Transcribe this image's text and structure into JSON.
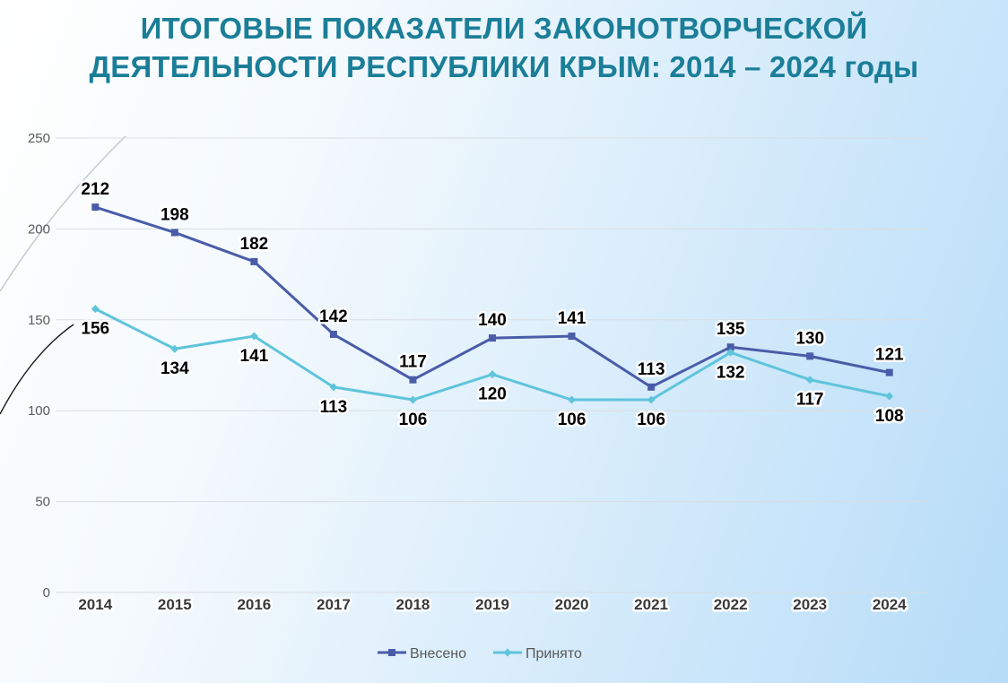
{
  "title": {
    "line1": "ИТОГОВЫЕ ПОКАЗАТЕЛИ ЗАКОНОТВОРЧЕСКОЙ",
    "line2": "ДЕЯТЕЛЬНОСТИ РЕСПУБЛИКИ КРЫМ: 2014 – 2024 годы"
  },
  "colors": {
    "title": "#1b7e98",
    "series_submitted": "#4a5ca8",
    "series_adopted": "#5fc4dc",
    "grid": "#d9dde2",
    "axis_text": "#595959"
  },
  "chart_data": {
    "type": "line",
    "title": "ИТОГОВЫЕ ПОКАЗАТЕЛИ ЗАКОНОТВОРЧЕСКОЙ ДЕЯТЕЛЬНОСТИ РЕСПУБЛИКИ КРЫМ: 2014 – 2024 годы",
    "categories": [
      "2014",
      "2015",
      "2016",
      "2017",
      "2018",
      "2019",
      "2020",
      "2021",
      "2022",
      "2023",
      "2024"
    ],
    "series": [
      {
        "name": "Внесено",
        "marker": "square",
        "values": [
          212,
          198,
          182,
          142,
          117,
          140,
          141,
          113,
          135,
          130,
          121
        ]
      },
      {
        "name": "Принято",
        "marker": "diamond",
        "values": [
          156,
          134,
          141,
          113,
          106,
          120,
          106,
          106,
          132,
          117,
          108
        ]
      }
    ],
    "ylim": [
      0,
      250
    ],
    "yticks": [
      0,
      50,
      100,
      150,
      200,
      250
    ],
    "grid": true,
    "legend": "bottom-center",
    "xlabel": "",
    "ylabel": ""
  }
}
